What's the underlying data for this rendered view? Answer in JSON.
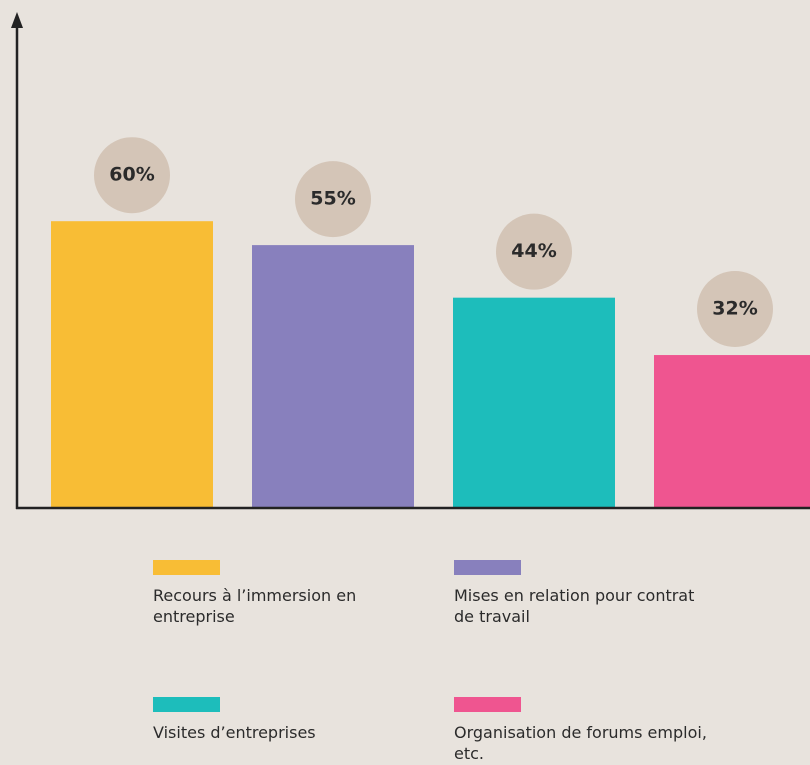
{
  "chart_data": {
    "type": "bar",
    "categories": [
      "Recours à l’immersion en entreprise",
      "Mises en relation pour contrat de travail",
      "Visites d’entreprises",
      "Organisation de forums emploi, etc."
    ],
    "series": [
      {
        "name": null,
        "values": [
          60,
          55,
          44,
          32
        ],
        "value_labels": [
          "60%",
          "55%",
          "44%",
          "32%"
        ]
      }
    ],
    "colors": [
      "#f8bd35",
      "#8880bd",
      "#1dbdbb",
      "#ef5590"
    ],
    "ylim": [
      0,
      100
    ]
  }
}
